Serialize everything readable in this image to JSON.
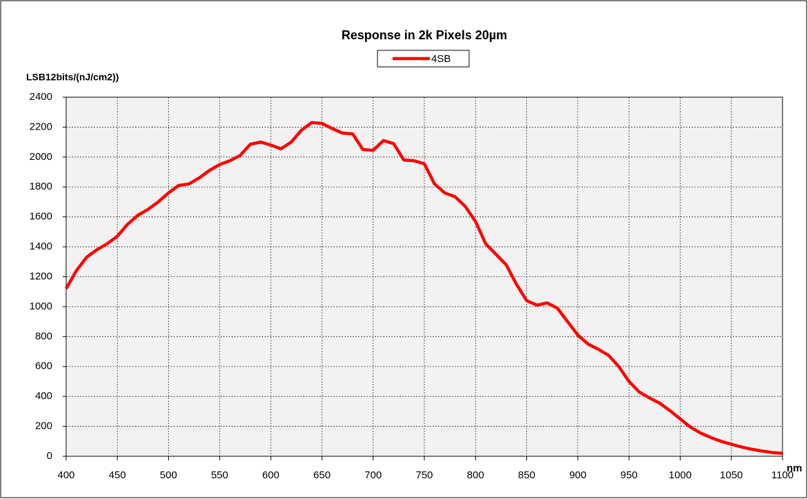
{
  "chart_data": {
    "type": "line",
    "title": "Response in 2k Pixels 20µm",
    "y_label": "LSB12bits/(nJ/cm2))",
    "x_label": "nm",
    "x": [
      400,
      410,
      420,
      430,
      440,
      450,
      460,
      470,
      480,
      490,
      500,
      510,
      520,
      530,
      540,
      550,
      560,
      570,
      580,
      590,
      600,
      610,
      620,
      630,
      640,
      650,
      660,
      670,
      680,
      690,
      700,
      710,
      720,
      730,
      740,
      750,
      760,
      770,
      780,
      790,
      800,
      810,
      820,
      830,
      840,
      850,
      860,
      870,
      880,
      890,
      900,
      910,
      920,
      930,
      940,
      950,
      960,
      970,
      980,
      990,
      1000,
      1010,
      1020,
      1030,
      1040,
      1050,
      1060,
      1070,
      1080,
      1090,
      1100
    ],
    "series": [
      {
        "name": "4SB",
        "color": "#ff0000",
        "values": [
          1120,
          1240,
          1330,
          1380,
          1420,
          1470,
          1550,
          1610,
          1650,
          1700,
          1760,
          1810,
          1820,
          1860,
          1910,
          1950,
          1975,
          2010,
          2085,
          2100,
          2080,
          2055,
          2100,
          2180,
          2230,
          2225,
          2190,
          2160,
          2155,
          2050,
          2045,
          2110,
          2090,
          1980,
          1975,
          1955,
          1820,
          1760,
          1735,
          1670,
          1570,
          1420,
          1350,
          1280,
          1150,
          1040,
          1010,
          1025,
          990,
          900,
          810,
          750,
          715,
          675,
          600,
          500,
          430,
          390,
          355,
          305,
          250,
          195,
          155,
          125,
          100,
          80,
          62,
          47,
          35,
          25,
          20
        ]
      }
    ],
    "xlim": [
      400,
      1100
    ],
    "xticks": [
      400,
      450,
      500,
      550,
      600,
      650,
      700,
      750,
      800,
      850,
      900,
      950,
      1000,
      1050,
      1100
    ],
    "ylim": [
      0,
      2400
    ],
    "yticks": [
      0,
      200,
      400,
      600,
      800,
      1000,
      1200,
      1400,
      1600,
      1800,
      2000,
      2200,
      2400
    ],
    "grid": true
  }
}
